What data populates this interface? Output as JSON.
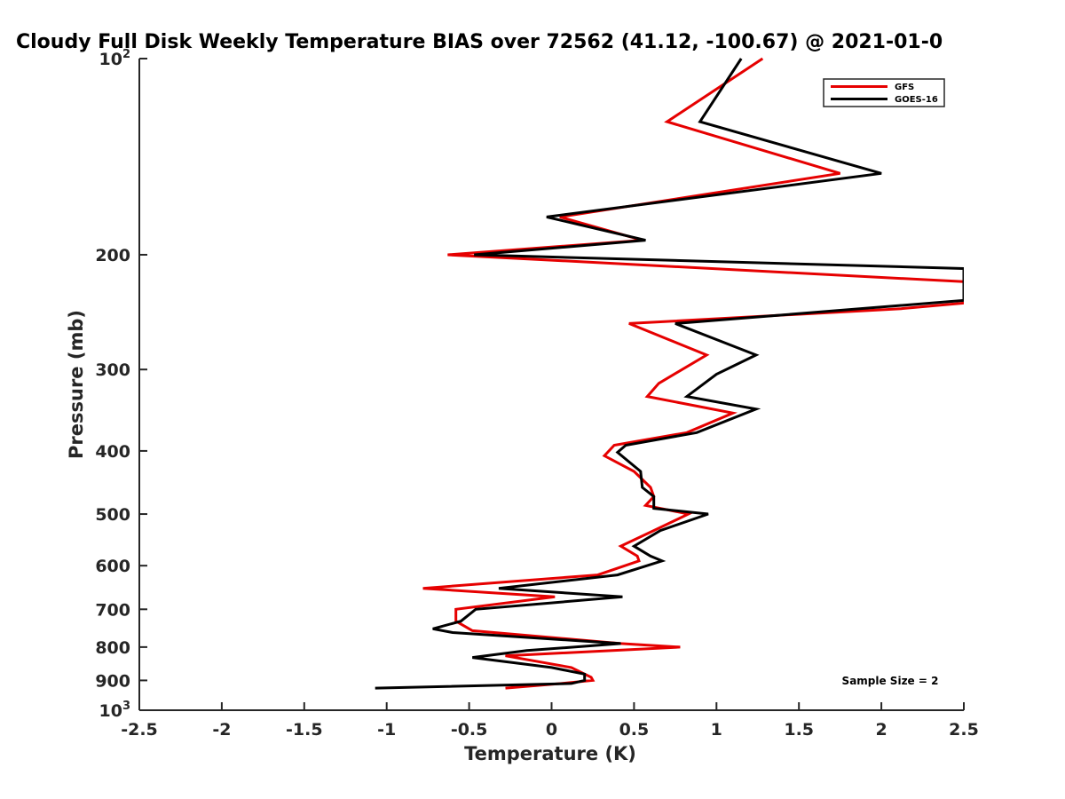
{
  "chart_data": {
    "type": "line",
    "title": "Cloudy Full Disk Weekly Temperature BIAS over 72562 (41.12, -100.67) @ 2021-01-0",
    "xlabel": "Temperature (K)",
    "ylabel": "Pressure (mb)",
    "xlim": [
      -2.5,
      2.5
    ],
    "ylim": [
      100,
      1000
    ],
    "yscale": "log",
    "yaxis_reversed": true,
    "grid": false,
    "legend_position": "top-right",
    "x_ticks": [
      "-2.5",
      "-2",
      "-1.5",
      "-1",
      "-0.5",
      "0",
      "0.5",
      "1",
      "1.5",
      "2",
      "2.5"
    ],
    "x_tick_values": [
      -2.5,
      -2,
      -1.5,
      -1,
      -0.5,
      0,
      0.5,
      1,
      1.5,
      2,
      2.5
    ],
    "y_ticks": [
      {
        "value": 100,
        "base": "10",
        "exp": "2"
      },
      {
        "value": 200,
        "base": "200",
        "exp": ""
      },
      {
        "value": 300,
        "base": "300",
        "exp": ""
      },
      {
        "value": 400,
        "base": "400",
        "exp": ""
      },
      {
        "value": 500,
        "base": "500",
        "exp": ""
      },
      {
        "value": 600,
        "base": "600",
        "exp": ""
      },
      {
        "value": 700,
        "base": "700",
        "exp": ""
      },
      {
        "value": 800,
        "base": "800",
        "exp": ""
      },
      {
        "value": 900,
        "base": "900",
        "exp": ""
      },
      {
        "value": 1000,
        "base": "10",
        "exp": "3"
      }
    ],
    "series": [
      {
        "name": "GFS",
        "color": "#e60000",
        "points": [
          [
            1.28,
            100
          ],
          [
            0.7,
            125
          ],
          [
            1.75,
            150
          ],
          [
            0.05,
            175
          ],
          [
            0.55,
            190
          ],
          [
            -0.63,
            200
          ],
          [
            2.5,
            220
          ],
          [
            2.52,
            237
          ],
          [
            2.12,
            242
          ],
          [
            0.47,
            255
          ],
          [
            0.94,
            285
          ],
          [
            0.65,
            315
          ],
          [
            0.58,
            330
          ],
          [
            1.1,
            350
          ],
          [
            0.82,
            375
          ],
          [
            0.38,
            392
          ],
          [
            0.32,
            407
          ],
          [
            0.5,
            430
          ],
          [
            0.6,
            455
          ],
          [
            0.62,
            470
          ],
          [
            0.57,
            485
          ],
          [
            0.83,
            500
          ],
          [
            0.62,
            530
          ],
          [
            0.42,
            560
          ],
          [
            0.52,
            580
          ],
          [
            0.53,
            590
          ],
          [
            0.28,
            620
          ],
          [
            -0.78,
            650
          ],
          [
            0.02,
            670
          ],
          [
            -0.58,
            700
          ],
          [
            -0.58,
            730
          ],
          [
            -0.48,
            755
          ],
          [
            0.42,
            790
          ],
          [
            0.78,
            800
          ],
          [
            -0.28,
            825
          ],
          [
            0.12,
            860
          ],
          [
            0.24,
            890
          ],
          [
            0.25,
            900
          ],
          [
            0.06,
            910
          ],
          [
            -0.28,
            925
          ]
        ]
      },
      {
        "name": "GOES-16",
        "color": "#000000",
        "points": [
          [
            1.15,
            100
          ],
          [
            0.9,
            125
          ],
          [
            2.0,
            150
          ],
          [
            -0.03,
            175
          ],
          [
            0.57,
            190
          ],
          [
            -0.47,
            200
          ],
          [
            2.5,
            210
          ],
          [
            2.5,
            235
          ],
          [
            0.75,
            255
          ],
          [
            1.24,
            285
          ],
          [
            1.0,
            305
          ],
          [
            0.82,
            330
          ],
          [
            1.24,
            345
          ],
          [
            0.88,
            375
          ],
          [
            0.45,
            392
          ],
          [
            0.4,
            402
          ],
          [
            0.54,
            430
          ],
          [
            0.55,
            455
          ],
          [
            0.62,
            470
          ],
          [
            0.62,
            490
          ],
          [
            0.95,
            500
          ],
          [
            0.66,
            530
          ],
          [
            0.5,
            560
          ],
          [
            0.6,
            580
          ],
          [
            0.67,
            590
          ],
          [
            0.4,
            620
          ],
          [
            -0.32,
            650
          ],
          [
            0.43,
            670
          ],
          [
            -0.46,
            700
          ],
          [
            -0.55,
            730
          ],
          [
            -0.72,
            750
          ],
          [
            -0.6,
            760
          ],
          [
            0.42,
            790
          ],
          [
            -0.15,
            810
          ],
          [
            -0.48,
            830
          ],
          [
            0.0,
            860
          ],
          [
            0.2,
            880
          ],
          [
            0.2,
            900
          ],
          [
            0.12,
            910
          ],
          [
            -1.07,
            925
          ]
        ]
      }
    ],
    "annotations": [
      "Sample Size = 2"
    ]
  }
}
